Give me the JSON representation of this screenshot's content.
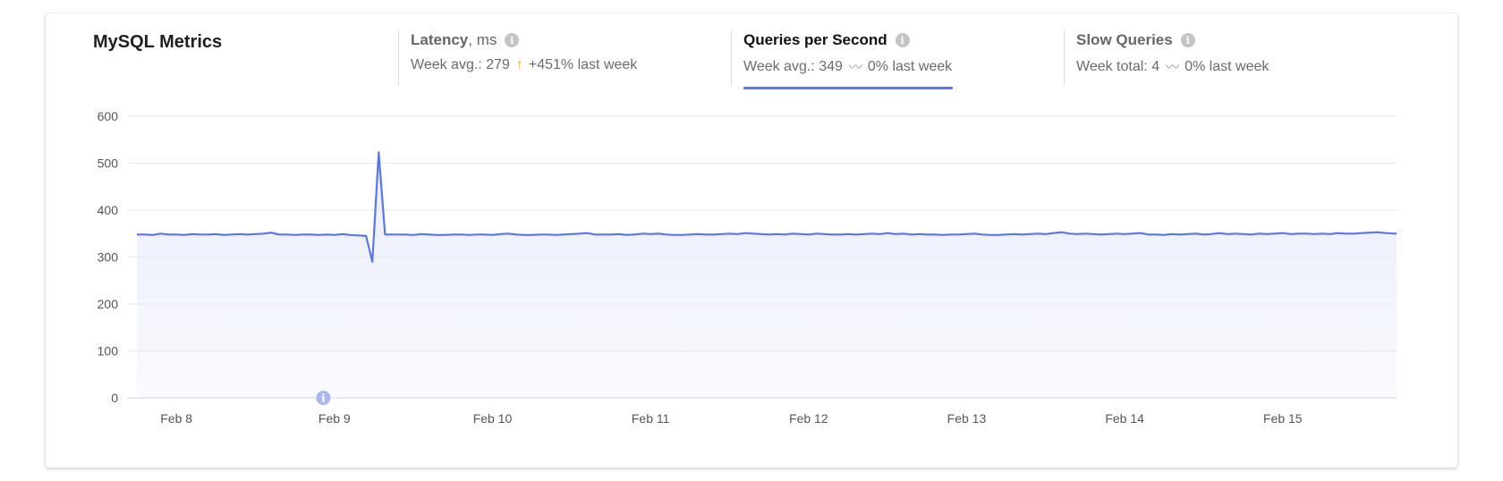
{
  "panel": {
    "title": "MySQL Metrics"
  },
  "metrics": [
    {
      "name": "Latency",
      "unit": ", ms",
      "summary_label": "Week avg.: 279",
      "trend_icon": "arrow-up-icon",
      "trend_symbol": "↑",
      "change": "+451% last week",
      "info_icon": "info-icon",
      "active": false
    },
    {
      "name": "Queries per Second",
      "unit": "",
      "summary_label": "Week avg.: 349",
      "trend_icon": "flat-trend-icon",
      "trend_symbol": "〰",
      "change": "0% last week",
      "info_icon": "info-icon",
      "active": true
    },
    {
      "name": "Slow Queries",
      "unit": "",
      "summary_label": "Week total: 4",
      "trend_icon": "flat-trend-icon",
      "trend_symbol": "〰",
      "change": "0% last week",
      "info_icon": "info-icon",
      "active": false
    }
  ],
  "colors": {
    "line": "#5b77e6",
    "fill": "#e9ecfb",
    "grid": "#e6e6e6",
    "annotation": "#a9b8f5",
    "trend_up": "#f39a2b"
  },
  "chart_data": {
    "type": "area",
    "title": "",
    "xlabel": "",
    "ylabel": "",
    "ylim": [
      0,
      600
    ],
    "yticks": [
      0,
      100,
      200,
      300,
      400,
      500,
      600
    ],
    "x_labels": [
      "Feb 8",
      "Feb 9",
      "Feb 10",
      "Feb 11",
      "Feb 12",
      "Feb 13",
      "Feb 14",
      "Feb 15"
    ],
    "x_range": [
      7.75,
      15.72
    ],
    "grid": true,
    "annotation": {
      "x": 8.93,
      "y": 0,
      "icon": "info-icon"
    },
    "series": [
      {
        "values": [
          [
            7.75,
            348
          ],
          [
            7.8,
            348
          ],
          [
            7.85,
            347
          ],
          [
            7.9,
            350
          ],
          [
            7.95,
            348
          ],
          [
            8.0,
            348
          ],
          [
            8.05,
            347
          ],
          [
            8.1,
            349
          ],
          [
            8.15,
            348
          ],
          [
            8.2,
            348
          ],
          [
            8.25,
            349
          ],
          [
            8.3,
            347
          ],
          [
            8.35,
            348
          ],
          [
            8.4,
            349
          ],
          [
            8.45,
            348
          ],
          [
            8.5,
            349
          ],
          [
            8.55,
            350
          ],
          [
            8.6,
            352
          ],
          [
            8.65,
            348
          ],
          [
            8.7,
            348
          ],
          [
            8.75,
            347
          ],
          [
            8.8,
            348
          ],
          [
            8.85,
            348
          ],
          [
            8.9,
            347
          ],
          [
            8.95,
            348
          ],
          [
            9.0,
            347
          ],
          [
            9.05,
            349
          ],
          [
            9.1,
            347
          ],
          [
            9.15,
            346
          ],
          [
            9.2,
            345
          ],
          [
            9.24,
            290
          ],
          [
            9.28,
            523
          ],
          [
            9.32,
            348
          ],
          [
            9.4,
            348
          ],
          [
            9.45,
            348
          ],
          [
            9.5,
            347
          ],
          [
            9.55,
            349
          ],
          [
            9.6,
            348
          ],
          [
            9.65,
            347
          ],
          [
            9.7,
            347
          ],
          [
            9.75,
            348
          ],
          [
            9.8,
            348
          ],
          [
            9.85,
            347
          ],
          [
            9.9,
            348
          ],
          [
            9.95,
            348
          ],
          [
            10.0,
            347
          ],
          [
            10.05,
            349
          ],
          [
            10.1,
            350
          ],
          [
            10.15,
            348
          ],
          [
            10.2,
            347
          ],
          [
            10.25,
            347
          ],
          [
            10.3,
            348
          ],
          [
            10.35,
            348
          ],
          [
            10.4,
            347
          ],
          [
            10.45,
            348
          ],
          [
            10.5,
            349
          ],
          [
            10.55,
            350
          ],
          [
            10.6,
            351
          ],
          [
            10.65,
            348
          ],
          [
            10.7,
            348
          ],
          [
            10.75,
            348
          ],
          [
            10.8,
            349
          ],
          [
            10.85,
            347
          ],
          [
            10.9,
            348
          ],
          [
            10.95,
            350
          ],
          [
            11.0,
            349
          ],
          [
            11.05,
            350
          ],
          [
            11.1,
            348
          ],
          [
            11.15,
            347
          ],
          [
            11.2,
            347
          ],
          [
            11.25,
            348
          ],
          [
            11.3,
            349
          ],
          [
            11.35,
            348
          ],
          [
            11.4,
            348
          ],
          [
            11.45,
            349
          ],
          [
            11.5,
            350
          ],
          [
            11.55,
            349
          ],
          [
            11.6,
            351
          ],
          [
            11.65,
            350
          ],
          [
            11.7,
            349
          ],
          [
            11.75,
            348
          ],
          [
            11.8,
            349
          ],
          [
            11.85,
            348
          ],
          [
            11.9,
            350
          ],
          [
            11.95,
            349
          ],
          [
            12.0,
            348
          ],
          [
            12.05,
            350
          ],
          [
            12.1,
            349
          ],
          [
            12.15,
            348
          ],
          [
            12.2,
            348
          ],
          [
            12.25,
            349
          ],
          [
            12.3,
            348
          ],
          [
            12.35,
            349
          ],
          [
            12.4,
            350
          ],
          [
            12.45,
            349
          ],
          [
            12.5,
            351
          ],
          [
            12.55,
            349
          ],
          [
            12.6,
            350
          ],
          [
            12.65,
            348
          ],
          [
            12.7,
            349
          ],
          [
            12.75,
            348
          ],
          [
            12.8,
            348
          ],
          [
            12.85,
            347
          ],
          [
            12.9,
            348
          ],
          [
            12.95,
            348
          ],
          [
            13.0,
            349
          ],
          [
            13.05,
            350
          ],
          [
            13.1,
            348
          ],
          [
            13.15,
            347
          ],
          [
            13.2,
            347
          ],
          [
            13.25,
            348
          ],
          [
            13.3,
            349
          ],
          [
            13.35,
            348
          ],
          [
            13.4,
            349
          ],
          [
            13.45,
            350
          ],
          [
            13.5,
            349
          ],
          [
            13.55,
            351
          ],
          [
            13.6,
            353
          ],
          [
            13.65,
            350
          ],
          [
            13.7,
            349
          ],
          [
            13.75,
            350
          ],
          [
            13.8,
            349
          ],
          [
            13.85,
            348
          ],
          [
            13.9,
            349
          ],
          [
            13.95,
            350
          ],
          [
            14.0,
            349
          ],
          [
            14.05,
            350
          ],
          [
            14.1,
            351
          ],
          [
            14.15,
            348
          ],
          [
            14.2,
            348
          ],
          [
            14.25,
            347
          ],
          [
            14.3,
            349
          ],
          [
            14.35,
            348
          ],
          [
            14.4,
            349
          ],
          [
            14.45,
            350
          ],
          [
            14.5,
            348
          ],
          [
            14.55,
            349
          ],
          [
            14.6,
            351
          ],
          [
            14.65,
            349
          ],
          [
            14.7,
            350
          ],
          [
            14.75,
            349
          ],
          [
            14.8,
            348
          ],
          [
            14.85,
            350
          ],
          [
            14.9,
            349
          ],
          [
            14.95,
            350
          ],
          [
            15.0,
            351
          ],
          [
            15.05,
            349
          ],
          [
            15.1,
            350
          ],
          [
            15.15,
            350
          ],
          [
            15.2,
            349
          ],
          [
            15.25,
            350
          ],
          [
            15.3,
            349
          ],
          [
            15.35,
            351
          ],
          [
            15.4,
            350
          ],
          [
            15.45,
            350
          ],
          [
            15.5,
            351
          ],
          [
            15.55,
            352
          ],
          [
            15.6,
            353
          ],
          [
            15.65,
            351
          ],
          [
            15.72,
            350
          ]
        ]
      }
    ]
  }
}
